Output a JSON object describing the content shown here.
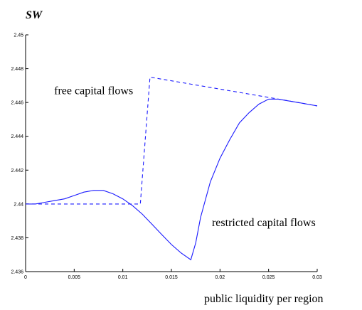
{
  "chart_data": {
    "type": "line",
    "title": "",
    "ylabel": "SW",
    "xlabel": "public liquidity per region",
    "xlim": [
      0,
      0.03
    ],
    "ylim": [
      2.436,
      2.45
    ],
    "x_ticks": [
      "0",
      "0.005",
      "0.01",
      "0.015",
      "0.02",
      "0.025",
      "0.03"
    ],
    "y_ticks": [
      "2.436",
      "2.438",
      "2.44",
      "2.442",
      "2.444",
      "2.446",
      "2.448",
      "2.45"
    ],
    "grid": false,
    "series": [
      {
        "name": "restricted capital flows",
        "style": "solid",
        "color": "#1a1aff",
        "points": [
          [
            0.0,
            2.44
          ],
          [
            0.001,
            2.44
          ],
          [
            0.002,
            2.4401
          ],
          [
            0.003,
            2.4402
          ],
          [
            0.004,
            2.4403
          ],
          [
            0.005,
            2.4405
          ],
          [
            0.006,
            2.4407
          ],
          [
            0.007,
            2.4408
          ],
          [
            0.008,
            2.4408
          ],
          [
            0.009,
            2.4406
          ],
          [
            0.01,
            2.4403
          ],
          [
            0.011,
            2.4399
          ],
          [
            0.012,
            2.4394
          ],
          [
            0.013,
            2.4388
          ],
          [
            0.014,
            2.4382
          ],
          [
            0.015,
            2.4376
          ],
          [
            0.016,
            2.4371
          ],
          [
            0.017,
            2.4367
          ],
          [
            0.0175,
            2.4377
          ],
          [
            0.018,
            2.4392
          ],
          [
            0.019,
            2.4413
          ],
          [
            0.02,
            2.4427
          ],
          [
            0.021,
            2.4438
          ],
          [
            0.022,
            2.4448
          ],
          [
            0.023,
            2.4454
          ],
          [
            0.024,
            2.4459
          ],
          [
            0.025,
            2.4462
          ],
          [
            0.026,
            2.4462
          ],
          [
            0.027,
            2.4461
          ],
          [
            0.028,
            2.446
          ],
          [
            0.029,
            2.4459
          ],
          [
            0.03,
            2.4458
          ]
        ]
      },
      {
        "name": "free capital flows",
        "style": "dashed",
        "color": "#1a1aff",
        "points": [
          [
            0.0,
            2.44
          ],
          [
            0.0118,
            2.44
          ],
          [
            0.0128,
            2.4475
          ],
          [
            0.025,
            2.4463
          ],
          [
            0.03,
            2.4458
          ]
        ]
      }
    ],
    "annotations": [
      {
        "text": "free capital flows",
        "x": 0.007,
        "y": 2.4465
      },
      {
        "text": "restricted capital flows",
        "x": 0.0245,
        "y": 2.4387
      }
    ]
  }
}
